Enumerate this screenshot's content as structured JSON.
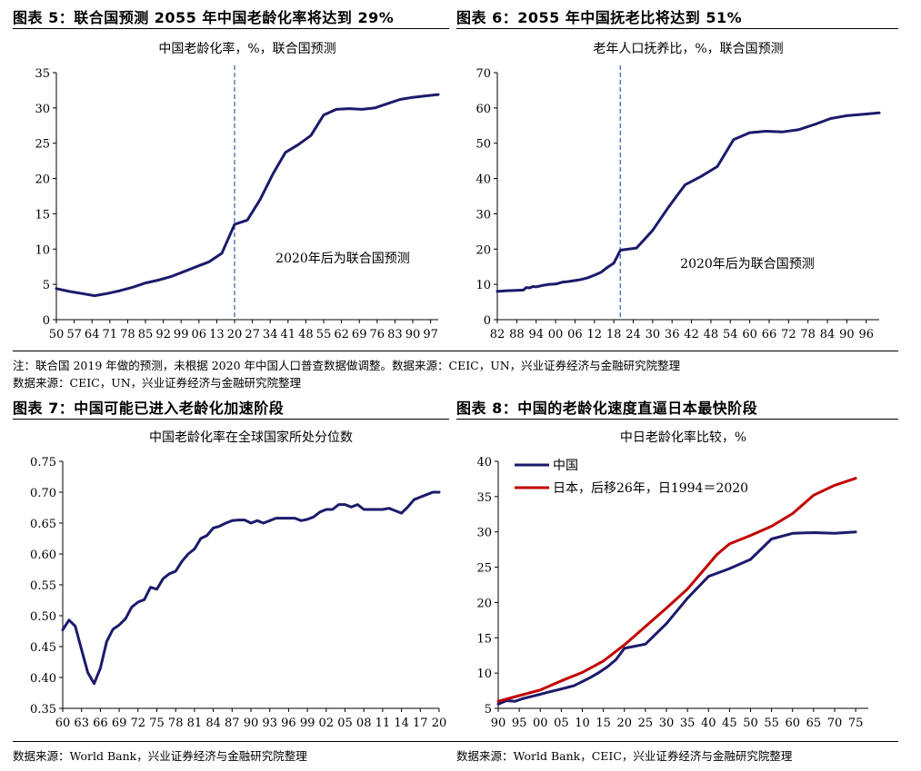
{
  "titles": {
    "fig5": "图表 5：联合国预测 2055 年中国老龄化率将达到 29%",
    "fig6": "图表 6：2055 年中国抚老比将达到 51%",
    "fig7": "图表 7：中国可能已进入老龄化加速阶段",
    "fig8": "图表 8：中国的老龄化速度直逼日本最快阶段"
  },
  "notes": {
    "note_top": "注：联合国 2019 年做的预测，未根据 2020 年中国人口普查数据做调整。数据来源：CEIC，UN，兴业证券经济与金融研究院整理",
    "source_top": "数据来源：CEIC，UN，兴业证券经济与金融研究院整理",
    "source_bl": "数据来源：World Bank，兴业证券经济与金融研究院整理",
    "source_br": "数据来源：World Bank，CEIC，兴业证券经济与金融研究院整理"
  },
  "colors": {
    "navy": "#1c1a6b",
    "red": "#c00000",
    "dash": "#2e5fa6"
  },
  "chart_data": [
    {
      "id": "c5",
      "type": "line",
      "title": "中国老龄化率，%，联合国预测",
      "annotation": "2020年后为联合国预测",
      "ylim": [
        0,
        35
      ],
      "yticks": [
        0,
        5,
        10,
        15,
        20,
        25,
        30,
        35
      ],
      "xlim": [
        1950,
        2100
      ],
      "xtick_values": [
        1950,
        1957,
        1964,
        1971,
        1978,
        1985,
        1992,
        1999,
        2006,
        2013,
        2020,
        2027,
        2034,
        2041,
        2048,
        2055,
        2062,
        2069,
        2076,
        2083,
        2090,
        2097
      ],
      "xtick_labels": [
        "50",
        "57",
        "64",
        "71",
        "78",
        "85",
        "92",
        "99",
        "06",
        "13",
        "20",
        "27",
        "34",
        "41",
        "48",
        "55",
        "62",
        "69",
        "76",
        "83",
        "90",
        "97"
      ],
      "vline": 2020,
      "series": [
        {
          "x": [
            1950,
            1955,
            1960,
            1965,
            1970,
            1975,
            1980,
            1985,
            1990,
            1995,
            2000,
            2005,
            2010,
            2015,
            2020,
            2025,
            2030,
            2035,
            2040,
            2045,
            2050,
            2055,
            2060,
            2065,
            2070,
            2075,
            2080,
            2085,
            2090,
            2095,
            2100
          ],
          "values": [
            4.4,
            4.0,
            3.7,
            3.4,
            3.7,
            4.1,
            4.6,
            5.2,
            5.6,
            6.1,
            6.8,
            7.5,
            8.2,
            9.4,
            13.5,
            14.1,
            17.0,
            20.6,
            23.7,
            24.8,
            26.1,
            29.0,
            29.8,
            29.9,
            29.8,
            30.0,
            30.6,
            31.2,
            31.5,
            31.7,
            31.9
          ]
        }
      ]
    },
    {
      "id": "c6",
      "type": "line",
      "title": "老年人口抚养比，%，联合国预测",
      "annotation": "2020年后为联合国预测",
      "ylim": [
        0,
        70
      ],
      "yticks": [
        0,
        10,
        20,
        30,
        40,
        50,
        60,
        70
      ],
      "xlim": [
        1982,
        2100
      ],
      "xtick_values": [
        1982,
        1988,
        1994,
        2000,
        2006,
        2012,
        2018,
        2024,
        2030,
        2036,
        2042,
        2048,
        2054,
        2060,
        2066,
        2072,
        2078,
        2084,
        2090,
        2096
      ],
      "xtick_labels": [
        "82",
        "88",
        "94",
        "00",
        "06",
        "12",
        "18",
        "24",
        "30",
        "36",
        "42",
        "48",
        "54",
        "60",
        "66",
        "72",
        "78",
        "84",
        "90",
        "96"
      ],
      "vline": 2020,
      "series": [
        {
          "x": [
            1982,
            1985,
            1988,
            1990,
            1991,
            1992,
            1993,
            1994,
            1996,
            1998,
            2000,
            2002,
            2004,
            2006,
            2008,
            2010,
            2012,
            2014,
            2016,
            2018,
            2019,
            2020,
            2025,
            2030,
            2035,
            2040,
            2045,
            2050,
            2055,
            2060,
            2065,
            2070,
            2075,
            2080,
            2085,
            2090,
            2095,
            2100
          ],
          "values": [
            8.0,
            8.2,
            8.3,
            8.4,
            9.1,
            9.0,
            9.4,
            9.3,
            9.7,
            10.0,
            10.1,
            10.6,
            10.8,
            11.1,
            11.4,
            11.9,
            12.6,
            13.4,
            14.8,
            16.0,
            17.8,
            19.7,
            20.3,
            25.3,
            32.0,
            38.2,
            40.6,
            43.4,
            51.0,
            53.0,
            53.4,
            53.2,
            53.8,
            55.3,
            57.0,
            57.8,
            58.2,
            58.6
          ]
        }
      ]
    },
    {
      "id": "c7",
      "type": "line",
      "title": "中国老龄化率在全球国家所处分位数",
      "ylim": [
        0.35,
        0.75
      ],
      "yticks": [
        0.35,
        0.4,
        0.45,
        0.5,
        0.55,
        0.6,
        0.65,
        0.7,
        0.75
      ],
      "ytick_labels": [
        "0.35",
        "0.40",
        "0.45",
        "0.50",
        "0.55",
        "0.60",
        "0.65",
        "0.70",
        "0.75"
      ],
      "xlim": [
        1960,
        2020
      ],
      "xtick_values": [
        1960,
        1963,
        1966,
        1969,
        1972,
        1975,
        1978,
        1981,
        1984,
        1987,
        1990,
        1993,
        1996,
        1999,
        2002,
        2005,
        2008,
        2011,
        2014,
        2017,
        2020
      ],
      "xtick_labels": [
        "60",
        "63",
        "66",
        "69",
        "72",
        "75",
        "78",
        "81",
        "84",
        "87",
        "90",
        "93",
        "96",
        "99",
        "02",
        "05",
        "08",
        "11",
        "14",
        "17",
        "20"
      ],
      "series": [
        {
          "x": [
            1960,
            1961,
            1962,
            1963,
            1964,
            1965,
            1966,
            1967,
            1968,
            1969,
            1970,
            1971,
            1972,
            1973,
            1974,
            1975,
            1976,
            1977,
            1978,
            1979,
            1980,
            1981,
            1982,
            1983,
            1984,
            1985,
            1986,
            1987,
            1988,
            1989,
            1990,
            1991,
            1992,
            1993,
            1994,
            1995,
            1996,
            1997,
            1998,
            1999,
            2000,
            2001,
            2002,
            2003,
            2004,
            2005,
            2006,
            2007,
            2008,
            2009,
            2010,
            2011,
            2012,
            2013,
            2014,
            2015,
            2016,
            2017,
            2018,
            2019,
            2020
          ],
          "values": [
            0.477,
            0.493,
            0.483,
            0.445,
            0.408,
            0.39,
            0.415,
            0.458,
            0.478,
            0.485,
            0.495,
            0.514,
            0.522,
            0.526,
            0.546,
            0.543,
            0.56,
            0.568,
            0.572,
            0.588,
            0.6,
            0.608,
            0.625,
            0.63,
            0.642,
            0.645,
            0.65,
            0.654,
            0.655,
            0.655,
            0.65,
            0.654,
            0.65,
            0.654,
            0.658,
            0.658,
            0.658,
            0.658,
            0.654,
            0.656,
            0.66,
            0.668,
            0.672,
            0.672,
            0.68,
            0.68,
            0.676,
            0.68,
            0.672,
            0.672,
            0.672,
            0.672,
            0.674,
            0.67,
            0.666,
            0.676,
            0.688,
            0.692,
            0.696,
            0.7,
            0.7
          ]
        }
      ]
    },
    {
      "id": "c8",
      "type": "line",
      "title": "中日老龄化率比较，%",
      "ylim": [
        5,
        40
      ],
      "yticks": [
        5,
        10,
        15,
        20,
        25,
        30,
        35,
        40
      ],
      "xlim": [
        1990,
        2078
      ],
      "xtick_values": [
        1990,
        1995,
        2000,
        2005,
        2010,
        2015,
        2020,
        2025,
        2030,
        2035,
        2040,
        2045,
        2050,
        2055,
        2060,
        2065,
        2070,
        2075
      ],
      "xtick_labels": [
        "90",
        "95",
        "00",
        "05",
        "10",
        "15",
        "20",
        "25",
        "30",
        "35",
        "40",
        "45",
        "50",
        "55",
        "60",
        "65",
        "70",
        "75"
      ],
      "legend": "top-left",
      "series": [
        {
          "name": "中国",
          "color": "navy",
          "x": [
            1990,
            1992,
            1994,
            1996,
            1998,
            2000,
            2002,
            2004,
            2006,
            2008,
            2010,
            2012,
            2014,
            2016,
            2018,
            2020,
            2025,
            2030,
            2035,
            2040,
            2045,
            2050,
            2055,
            2060,
            2065,
            2070,
            2075
          ],
          "values": [
            5.6,
            6.1,
            6.0,
            6.4,
            6.7,
            7.0,
            7.3,
            7.6,
            7.9,
            8.2,
            8.8,
            9.4,
            10.1,
            10.9,
            11.9,
            13.5,
            14.1,
            17.0,
            20.6,
            23.7,
            24.8,
            26.1,
            29.0,
            29.8,
            29.9,
            29.8,
            30.0
          ]
        },
        {
          "name": "日本，后移26年，日1994＝2020",
          "color": "red",
          "x": [
            1990,
            1995,
            2000,
            2005,
            2010,
            2015,
            2020,
            2025,
            2030,
            2035,
            2040,
            2042,
            2045,
            2050,
            2055,
            2060,
            2065,
            2070,
            2075
          ],
          "values": [
            6.0,
            6.8,
            7.6,
            8.9,
            10.1,
            11.7,
            14.0,
            16.6,
            19.2,
            21.9,
            25.4,
            26.8,
            28.3,
            29.5,
            30.8,
            32.6,
            35.2,
            36.6,
            37.6
          ]
        }
      ]
    }
  ]
}
